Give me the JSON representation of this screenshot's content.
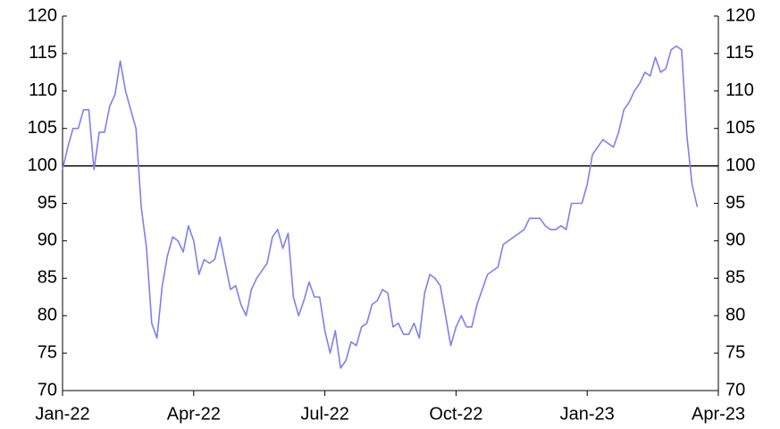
{
  "chart_data": {
    "type": "line",
    "xlim": [
      0,
      125
    ],
    "xticks": [
      {
        "value": 0,
        "label": "Jan-22"
      },
      {
        "value": 25,
        "label": "Apr-22"
      },
      {
        "value": 50,
        "label": "Jul-22"
      },
      {
        "value": 75,
        "label": "Oct-22"
      },
      {
        "value": 100,
        "label": "Jan-23"
      },
      {
        "value": 125,
        "label": "Apr-23"
      }
    ],
    "ylim": [
      70,
      120
    ],
    "yticks": [
      70,
      75,
      80,
      85,
      90,
      95,
      100,
      105,
      110,
      115,
      120
    ],
    "y2lim": [
      70,
      120
    ],
    "y2ticks": [
      70,
      75,
      80,
      85,
      90,
      95,
      100,
      105,
      110,
      115,
      120
    ],
    "reference_line": 100,
    "series": [
      {
        "color": "#7f7ff0",
        "values": [
          99.5,
          102.5,
          105,
          105,
          107.5,
          107.5,
          99.5,
          104.5,
          104.5,
          108,
          109.5,
          114,
          110,
          107.5,
          105,
          94.5,
          89,
          79,
          77,
          84,
          88,
          90.5,
          90,
          88.5,
          92,
          90,
          85.5,
          87.5,
          87,
          87.5,
          90.5,
          87,
          83.5,
          84,
          81.5,
          80,
          83.5,
          85,
          86,
          87,
          90.5,
          91.5,
          89,
          91,
          82.5,
          80,
          82,
          84.5,
          82.5,
          82.5,
          78,
          75,
          78,
          73,
          74,
          76.5,
          76,
          78.5,
          79,
          81.5,
          82,
          83.5,
          83,
          78.5,
          79,
          77.5,
          77.5,
          79,
          77,
          83,
          85.5,
          85,
          84,
          80,
          76,
          78.5,
          80,
          78.5,
          78.5,
          81.5,
          83.5,
          85.5,
          86,
          86.5,
          89.5,
          90,
          90.5,
          91,
          91.5,
          93,
          93,
          93,
          92,
          91.5,
          91.5,
          92,
          91.5,
          95,
          95,
          95,
          97.5,
          101.5,
          102.5,
          103.5,
          103,
          102.5,
          104.5,
          107.5,
          108.5,
          110,
          111,
          112.5,
          112,
          114.5,
          112.5,
          113,
          115.5,
          116,
          115.5,
          104,
          97.5,
          94.5
        ]
      }
    ]
  }
}
